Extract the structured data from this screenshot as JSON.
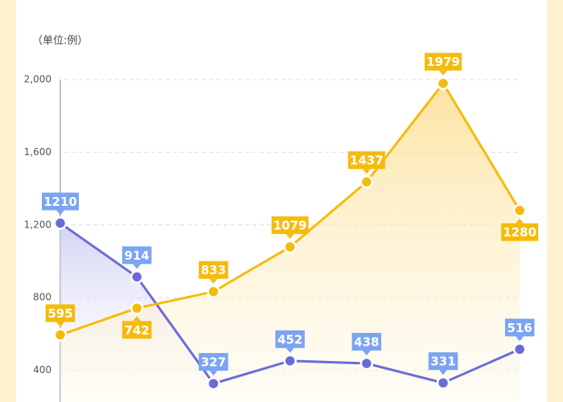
{
  "chart_data": {
    "type": "line",
    "unit": "（单位:例）",
    "series": [
      {
        "color": "#6b6bd8",
        "label_color": "#7ba4f2",
        "values": [
          1210,
          914,
          327,
          452,
          438,
          331,
          516
        ]
      },
      {
        "color": "#f5bb0c",
        "label_color": "#f5bb0c",
        "values": [
          595,
          742,
          833,
          1079,
          1437,
          1979,
          1280
        ]
      }
    ],
    "ylim": [
      0,
      2000
    ],
    "yticks": [
      400,
      800,
      {
        "value": 1200,
        "label": "1,200"
      },
      {
        "value": 1600,
        "label": "1,600"
      },
      {
        "value": 2000,
        "label": "2,000"
      }
    ],
    "grid": true
  }
}
